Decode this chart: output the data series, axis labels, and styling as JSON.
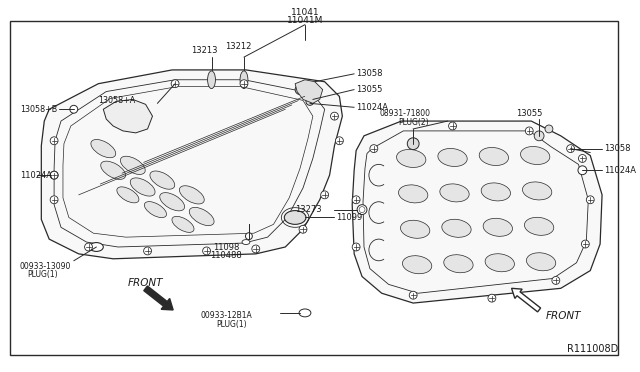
{
  "bg_color": "#ffffff",
  "line_color": "#2a2a2a",
  "text_color": "#1a1a1a",
  "fig_width": 6.4,
  "fig_height": 3.72,
  "dpi": 100,
  "diagram_id": "R111008D",
  "top_label_1": "11041",
  "top_label_2": "11041M"
}
